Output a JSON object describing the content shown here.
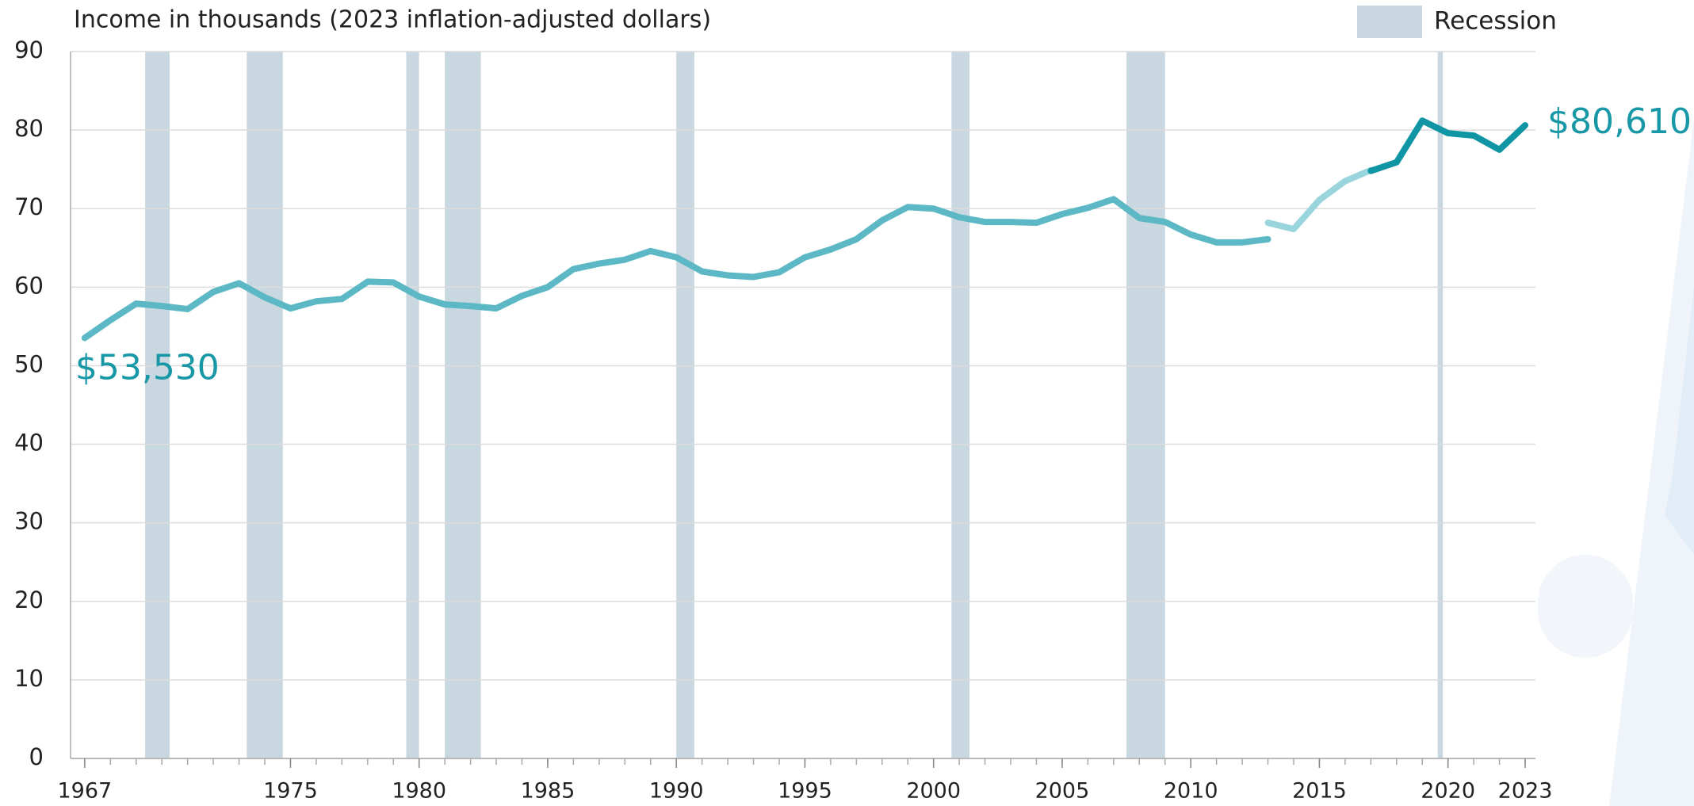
{
  "chart_data": {
    "type": "line",
    "y_label": "Income in thousands (2023 inflation-adjusted dollars)",
    "x": [
      1967,
      1968,
      1969,
      1970,
      1971,
      1972,
      1973,
      1974,
      1975,
      1976,
      1977,
      1978,
      1979,
      1980,
      1981,
      1982,
      1983,
      1984,
      1985,
      1986,
      1987,
      1988,
      1989,
      1990,
      1991,
      1992,
      1993,
      1994,
      1995,
      1996,
      1997,
      1998,
      1999,
      2000,
      2001,
      2002,
      2003,
      2004,
      2005,
      2006,
      2007,
      2008,
      2009,
      2010,
      2011,
      2012,
      2013,
      2014,
      2015,
      2016,
      2017,
      2018,
      2019,
      2020,
      2021,
      2022,
      2023
    ],
    "series": [
      {
        "color": "#5bb8c4",
        "values": [
          53.53,
          55.8,
          57.9,
          57.6,
          57.2,
          59.4,
          60.5,
          58.7,
          57.3,
          58.2,
          58.5,
          60.7,
          60.6,
          58.8,
          57.8,
          57.6,
          57.3,
          58.9,
          60.0,
          62.3,
          63.0,
          63.5,
          64.6,
          63.8,
          62.0,
          61.5,
          61.3,
          61.9,
          63.8,
          64.8,
          66.1,
          68.5,
          70.2,
          70.0,
          68.9,
          68.3,
          68.3,
          68.2,
          69.3,
          70.1,
          71.2,
          68.8,
          68.3,
          66.7,
          65.7,
          65.7,
          66.1,
          null,
          null,
          null,
          null,
          null,
          null,
          null,
          null,
          null,
          null
        ],
        "value_labels": [
          "$53,530",
          null,
          null,
          null,
          null,
          null,
          null,
          null,
          null,
          null,
          null,
          null,
          null,
          null,
          null,
          null,
          null,
          null,
          null,
          null,
          null,
          null,
          null,
          null,
          null,
          null,
          null,
          null,
          null,
          null,
          null,
          null,
          null,
          null,
          null,
          null,
          null,
          null,
          null,
          null,
          null,
          null,
          null,
          null,
          null,
          null,
          null,
          null,
          null,
          null,
          null,
          null,
          null,
          null,
          null,
          null,
          null
        ]
      },
      {
        "color": "#9ad5de",
        "values": [
          null,
          null,
          null,
          null,
          null,
          null,
          null,
          null,
          null,
          null,
          null,
          null,
          null,
          null,
          null,
          null,
          null,
          null,
          null,
          null,
          null,
          null,
          null,
          null,
          null,
          null,
          null,
          null,
          null,
          null,
          null,
          null,
          null,
          null,
          null,
          null,
          null,
          null,
          null,
          null,
          null,
          null,
          null,
          null,
          null,
          null,
          68.2,
          67.4,
          71.1,
          73.5,
          74.9,
          null,
          null,
          null,
          null,
          null,
          null
        ]
      },
      {
        "color": "#0f95a3",
        "values": [
          null,
          null,
          null,
          null,
          null,
          null,
          null,
          null,
          null,
          null,
          null,
          null,
          null,
          null,
          null,
          null,
          null,
          null,
          null,
          null,
          null,
          null,
          null,
          null,
          null,
          null,
          null,
          null,
          null,
          null,
          null,
          null,
          null,
          null,
          null,
          null,
          null,
          null,
          null,
          null,
          null,
          null,
          null,
          null,
          null,
          null,
          null,
          null,
          null,
          null,
          74.8,
          75.9,
          81.2,
          79.6,
          79.3,
          77.5,
          80.61
        ],
        "value_labels": [
          null,
          null,
          null,
          null,
          null,
          null,
          null,
          null,
          null,
          null,
          null,
          null,
          null,
          null,
          null,
          null,
          null,
          null,
          null,
          null,
          null,
          null,
          null,
          null,
          null,
          null,
          null,
          null,
          null,
          null,
          null,
          null,
          null,
          null,
          null,
          null,
          null,
          null,
          null,
          null,
          null,
          null,
          null,
          null,
          null,
          null,
          null,
          null,
          null,
          null,
          null,
          null,
          null,
          null,
          null,
          null,
          "$80,610"
        ]
      }
    ],
    "recession_label": "Recession",
    "recession_color": "#c9d7e0",
    "recessions": [
      [
        1969.35,
        1970.3
      ],
      [
        1973.3,
        1974.7
      ],
      [
        1979.5,
        1980.0
      ],
      [
        1981.0,
        1982.4
      ],
      [
        1990.0,
        1990.7
      ],
      [
        2000.7,
        2001.4
      ],
      [
        2007.5,
        2009.0
      ],
      [
        2019.6,
        2019.8
      ]
    ],
    "xlim": [
      1966.45,
      2023.4
    ],
    "xticks": [
      1967,
      1975,
      1980,
      1985,
      1990,
      1995,
      2000,
      2005,
      2010,
      2015,
      2020,
      2023
    ],
    "ylim": [
      0,
      90
    ],
    "yticks": [
      0,
      10,
      20,
      30,
      40,
      50,
      60,
      70,
      80,
      90
    ],
    "grid": true,
    "label_color": "#1897a6"
  }
}
